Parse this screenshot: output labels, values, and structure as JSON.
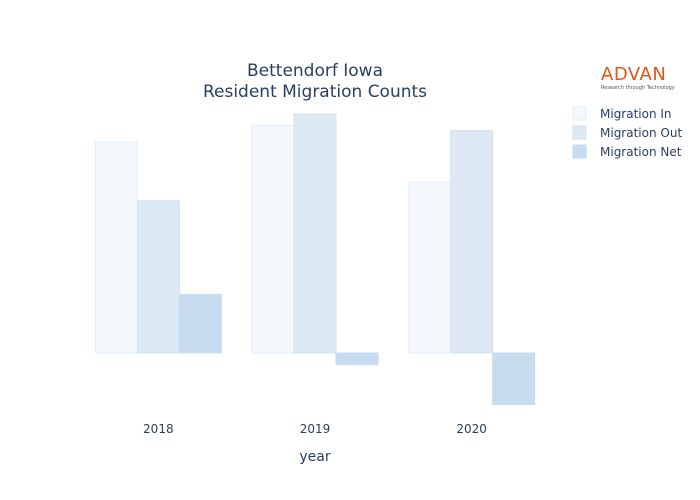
{
  "chart_data": {
    "type": "bar",
    "title_lines": [
      "Bettendorf Iowa",
      "Resident Migration Counts"
    ],
    "xlabel": "year",
    "ylabel": "",
    "categories": [
      "2018",
      "2019",
      "2020"
    ],
    "series": [
      {
        "name": "Migration In",
        "values": [
          4500,
          4850,
          3650
        ],
        "color": "#f4f8fd",
        "stroke": "#e3edf7"
      },
      {
        "name": "Migration Out",
        "values": [
          3250,
          5100,
          4750
        ],
        "color": "#dde9f5",
        "stroke": "#d3e2f1"
      },
      {
        "name": "Migration Net",
        "values": [
          1250,
          -250,
          -1100
        ],
        "color": "#c7dcee",
        "stroke": "#c7dcee"
      }
    ],
    "ylim": [
      -1200,
      5400
    ],
    "legend_position": "top-right",
    "grid": false
  },
  "logo": {
    "name": "ADVAN",
    "tagline": "Research through Technology"
  }
}
